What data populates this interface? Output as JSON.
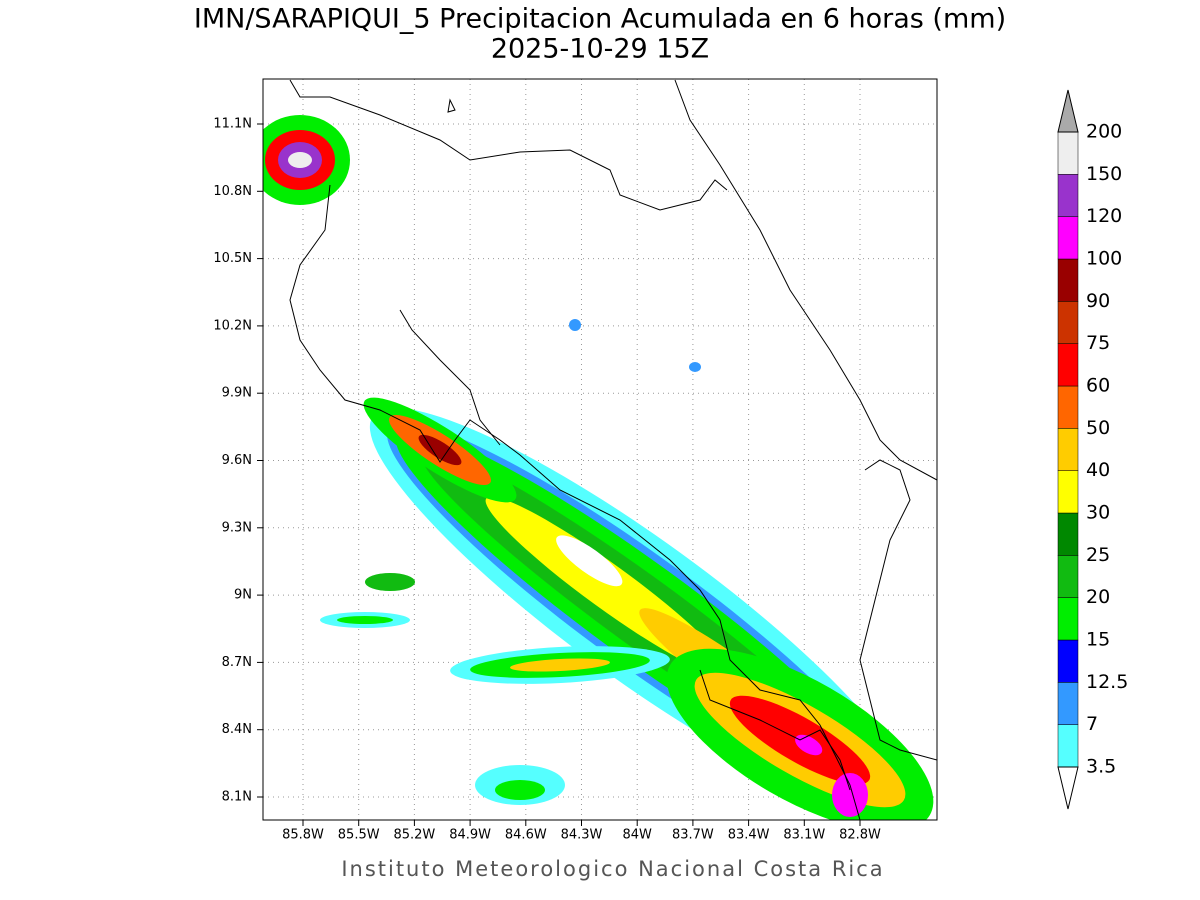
{
  "header": {
    "title": "IMN/SARAPIQUI_5 Precipitacion Acumulada en 6 horas (mm)",
    "subtitle": "2025-10-29 15Z"
  },
  "map": {
    "lon_labels": [
      "85.8W",
      "85.5W",
      "85.2W",
      "84.9W",
      "84.6W",
      "84.3W",
      "84W",
      "83.7W",
      "83.4W",
      "83.1W",
      "82.8W"
    ],
    "lat_labels": [
      "11.1N",
      "10.8N",
      "10.5N",
      "10.2N",
      "9.9N",
      "9.6N",
      "9.3N",
      "9N",
      "8.7N",
      "8.4N",
      "8.1N"
    ]
  },
  "colorbar": {
    "labels": [
      "3.5",
      "7",
      "12.5",
      "15",
      "20",
      "25",
      "30",
      "40",
      "50",
      "60",
      "75",
      "90",
      "100",
      "120",
      "150",
      "200"
    ],
    "colors": [
      "#55ffff",
      "#3399ff",
      "#0000ff",
      "#00ee00",
      "#11bb11",
      "#008800",
      "#ffff00",
      "#ffcc00",
      "#ff6600",
      "#ff0000",
      "#cc3300",
      "#990000",
      "#ff00ff",
      "#9933cc",
      "#eeeeee"
    ],
    "under_color": "#ffffff",
    "over_color": "#aaaaaa"
  },
  "footer": "Instituto Meteorologico Nacional Costa Rica"
}
